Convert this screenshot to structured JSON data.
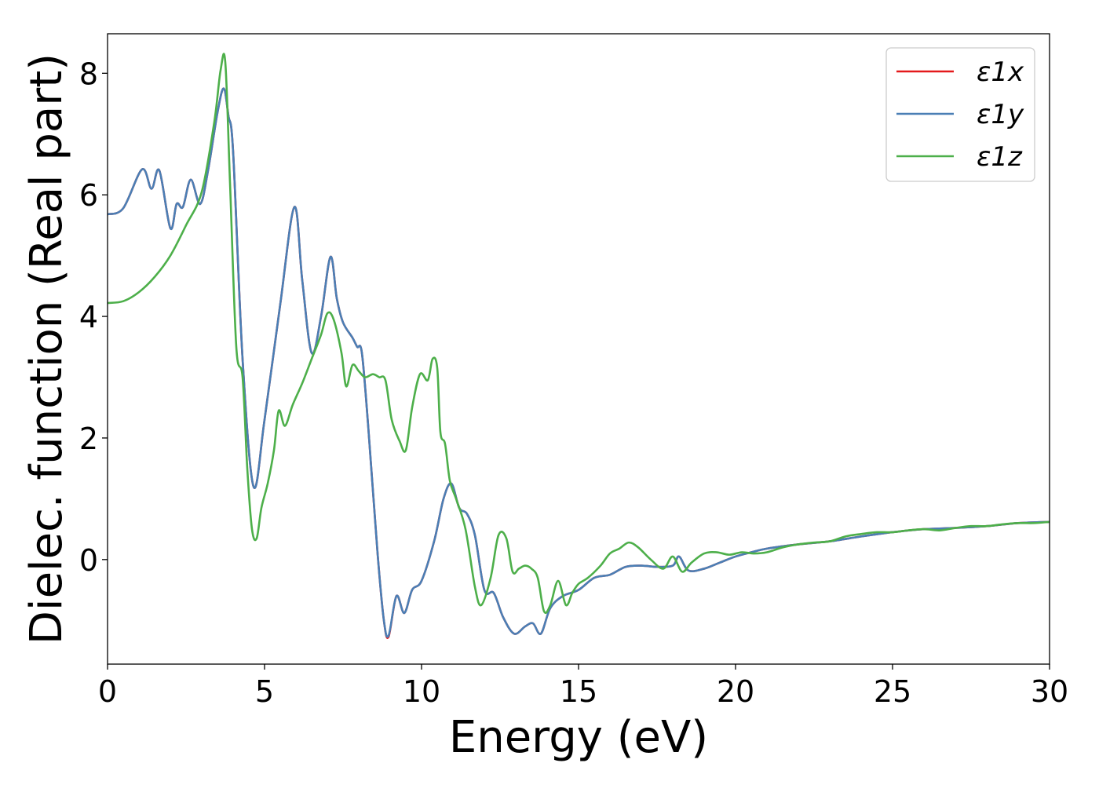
{
  "chart_data": {
    "type": "line",
    "xlabel": "Energy (eV)",
    "ylabel": "Dielec. function (Real part)",
    "xlim": [
      0,
      30
    ],
    "ylim": [
      -1.72,
      8.65
    ],
    "xticks": [
      0,
      5,
      10,
      15,
      20,
      25,
      30
    ],
    "yticks": [
      0,
      2,
      4,
      6,
      8
    ],
    "xtick_labels": [
      "0",
      "5",
      "10",
      "15",
      "20",
      "25",
      "30"
    ],
    "ytick_labels": [
      "0",
      "2",
      "4",
      "6",
      "8"
    ],
    "grid": false,
    "legend_position": "top-right",
    "series": [
      {
        "name": "ε1x",
        "color": "#e41a1c",
        "x": [
          0,
          0.5,
          1.1,
          1.4,
          1.65,
          2.0,
          2.2,
          2.4,
          2.65,
          2.95,
          3.2,
          3.5,
          3.7,
          3.85,
          4.0,
          4.3,
          4.65,
          5.0,
          5.5,
          5.95,
          6.2,
          6.5,
          6.8,
          7.1,
          7.3,
          7.5,
          7.8,
          7.95,
          8.1,
          8.3,
          8.6,
          8.8,
          8.95,
          9.2,
          9.45,
          9.7,
          10.0,
          10.4,
          10.7,
          10.95,
          11.2,
          11.45,
          11.7,
          12.0,
          12.3,
          12.6,
          12.95,
          13.3,
          13.55,
          13.8,
          14.1,
          14.5,
          15.0,
          15.5,
          16.0,
          16.5,
          17.0,
          17.5,
          18.0,
          18.2,
          18.5,
          19.0,
          19.5,
          20.0,
          20.5,
          21.0,
          22.0,
          23.0,
          24.0,
          25.0,
          26.0,
          27.0,
          28.0,
          29.0,
          30.0
        ],
        "values": [
          5.68,
          5.78,
          6.42,
          6.1,
          6.4,
          5.45,
          5.85,
          5.8,
          6.25,
          5.85,
          6.4,
          7.35,
          7.75,
          7.3,
          6.7,
          3.3,
          1.2,
          2.3,
          4.2,
          5.8,
          4.6,
          3.4,
          4.0,
          4.98,
          4.3,
          3.9,
          3.65,
          3.5,
          3.4,
          2.2,
          0.1,
          -1.0,
          -1.27,
          -0.6,
          -0.88,
          -0.5,
          -0.35,
          0.3,
          1.0,
          1.25,
          0.85,
          0.75,
          0.4,
          -0.5,
          -0.55,
          -0.95,
          -1.22,
          -1.1,
          -1.05,
          -1.22,
          -0.8,
          -0.6,
          -0.5,
          -0.3,
          -0.25,
          -0.12,
          -0.1,
          -0.12,
          -0.1,
          0.05,
          -0.18,
          -0.15,
          -0.05,
          0.05,
          0.12,
          0.18,
          0.25,
          0.3,
          0.38,
          0.45,
          0.5,
          0.52,
          0.55,
          0.6,
          0.62
        ]
      },
      {
        "name": "ε1y",
        "color": "#4a7fb5",
        "x": [
          0,
          0.5,
          1.1,
          1.4,
          1.65,
          2.0,
          2.2,
          2.4,
          2.65,
          2.95,
          3.2,
          3.5,
          3.7,
          3.85,
          4.0,
          4.3,
          4.65,
          5.0,
          5.5,
          5.95,
          6.2,
          6.5,
          6.8,
          7.1,
          7.3,
          7.5,
          7.8,
          7.95,
          8.1,
          8.3,
          8.6,
          8.8,
          8.95,
          9.2,
          9.45,
          9.7,
          10.0,
          10.4,
          10.7,
          10.95,
          11.2,
          11.45,
          11.7,
          12.0,
          12.3,
          12.6,
          12.95,
          13.3,
          13.55,
          13.8,
          14.1,
          14.5,
          15.0,
          15.5,
          16.0,
          16.5,
          17.0,
          17.5,
          18.0,
          18.2,
          18.5,
          19.0,
          19.5,
          20.0,
          20.5,
          21.0,
          22.0,
          23.0,
          24.0,
          25.0,
          26.0,
          27.0,
          28.0,
          29.0,
          30.0
        ],
        "values": [
          5.68,
          5.78,
          6.42,
          6.1,
          6.4,
          5.45,
          5.85,
          5.8,
          6.25,
          5.85,
          6.4,
          7.35,
          7.75,
          7.3,
          6.7,
          3.3,
          1.2,
          2.3,
          4.2,
          5.8,
          4.6,
          3.4,
          4.0,
          4.98,
          4.3,
          3.9,
          3.65,
          3.5,
          3.4,
          2.2,
          0.1,
          -1.0,
          -1.25,
          -0.6,
          -0.88,
          -0.5,
          -0.35,
          0.3,
          1.0,
          1.25,
          0.85,
          0.75,
          0.4,
          -0.5,
          -0.55,
          -0.95,
          -1.22,
          -1.1,
          -1.05,
          -1.22,
          -0.8,
          -0.6,
          -0.5,
          -0.3,
          -0.25,
          -0.12,
          -0.1,
          -0.12,
          -0.1,
          0.05,
          -0.18,
          -0.15,
          -0.05,
          0.05,
          0.12,
          0.18,
          0.25,
          0.3,
          0.38,
          0.45,
          0.5,
          0.52,
          0.55,
          0.6,
          0.62
        ]
      },
      {
        "name": "ε1z",
        "color": "#4daf4a",
        "x": [
          0,
          0.5,
          1.0,
          1.5,
          2.0,
          2.5,
          3.0,
          3.4,
          3.6,
          3.75,
          3.9,
          4.1,
          4.3,
          4.45,
          4.6,
          4.75,
          4.9,
          5.1,
          5.3,
          5.45,
          5.65,
          5.9,
          6.2,
          6.5,
          6.8,
          7.0,
          7.2,
          7.45,
          7.6,
          7.8,
          8.0,
          8.2,
          8.45,
          8.65,
          8.85,
          9.05,
          9.3,
          9.5,
          9.7,
          9.95,
          10.2,
          10.35,
          10.5,
          10.6,
          10.75,
          10.9,
          11.1,
          11.4,
          11.7,
          11.9,
          12.2,
          12.45,
          12.7,
          12.9,
          13.1,
          13.3,
          13.5,
          13.7,
          13.9,
          14.1,
          14.35,
          14.6,
          14.8,
          15.0,
          15.3,
          15.7,
          16.0,
          16.3,
          16.6,
          16.9,
          17.3,
          17.7,
          18.0,
          18.3,
          18.6,
          19.0,
          19.4,
          19.8,
          20.2,
          20.6,
          21.0,
          21.5,
          22.0,
          22.5,
          23.0,
          23.5,
          24.0,
          24.5,
          25.0,
          25.5,
          26.0,
          26.5,
          27.0,
          27.5,
          28.0,
          28.5,
          29.0,
          29.5,
          30.0
        ],
        "values": [
          4.22,
          4.25,
          4.4,
          4.65,
          5.0,
          5.5,
          6.05,
          7.2,
          8.05,
          8.18,
          6.2,
          3.5,
          3.0,
          1.5,
          0.5,
          0.35,
          0.85,
          1.25,
          1.8,
          2.45,
          2.2,
          2.55,
          2.9,
          3.3,
          3.7,
          4.05,
          3.95,
          3.4,
          2.85,
          3.2,
          3.1,
          3.0,
          3.05,
          3.0,
          2.95,
          2.3,
          1.95,
          1.8,
          2.5,
          3.05,
          2.95,
          3.3,
          3.15,
          2.1,
          1.9,
          1.3,
          1.0,
          0.5,
          -0.45,
          -0.75,
          -0.3,
          0.4,
          0.35,
          -0.2,
          -0.15,
          -0.1,
          -0.15,
          -0.3,
          -0.85,
          -0.75,
          -0.35,
          -0.75,
          -0.55,
          -0.4,
          -0.3,
          -0.1,
          0.1,
          0.18,
          0.28,
          0.2,
          0.0,
          -0.15,
          0.05,
          -0.2,
          -0.05,
          0.1,
          0.12,
          0.08,
          0.12,
          0.1,
          0.12,
          0.2,
          0.25,
          0.28,
          0.3,
          0.38,
          0.42,
          0.45,
          0.45,
          0.48,
          0.5,
          0.48,
          0.52,
          0.55,
          0.55,
          0.58,
          0.6,
          0.6,
          0.62
        ]
      }
    ]
  }
}
